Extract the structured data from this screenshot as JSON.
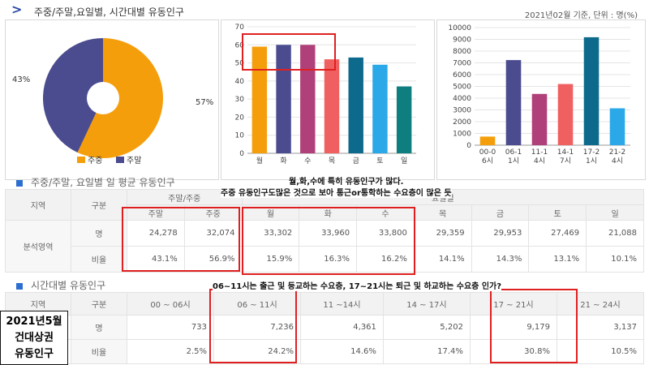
{
  "header": {
    "title": "주중/주말,요일별, 시간대별 유동인구",
    "meta": "2021년02월 기준, 단위 : 명(%)"
  },
  "legend": [
    {
      "label": "주중",
      "color": "#f59e0b"
    },
    {
      "label": "주말",
      "color": "#4b4b8f"
    }
  ],
  "chart_data": [
    {
      "type": "pie",
      "categories": [
        "주중",
        "주말"
      ],
      "values": [
        57,
        43
      ],
      "data_labels": [
        "57%",
        "43%"
      ],
      "colors": [
        "#f59e0b",
        "#4b4b8f"
      ]
    },
    {
      "type": "bar",
      "categories": [
        "월",
        "화",
        "수",
        "목",
        "금",
        "토",
        "일"
      ],
      "values": [
        59,
        60,
        60,
        52,
        53,
        49,
        37
      ],
      "ylim": [
        0,
        70
      ],
      "yticks": [
        0,
        10,
        20,
        30,
        40,
        50,
        60,
        70
      ],
      "colors": [
        "#f59e0b",
        "#4b4b8f",
        "#b0407a",
        "#f06060",
        "#0d6a8c",
        "#2aa8e8",
        "#0f7e7e"
      ]
    },
    {
      "type": "bar",
      "categories": [
        "00-06시",
        "06-11시",
        "11-14시",
        "14-17시",
        "17-21시",
        "21-24시"
      ],
      "tick_line1": [
        "00-0",
        "06-1",
        "11-1",
        "14-1",
        "17-2",
        "21-2"
      ],
      "tick_line2": [
        "6시",
        "1시",
        "4시",
        "7시",
        "1시",
        "4시"
      ],
      "values": [
        733,
        7236,
        4361,
        5202,
        9179,
        3137
      ],
      "ylim": [
        0,
        10000
      ],
      "yticks": [
        0,
        1000,
        2000,
        3000,
        4000,
        5000,
        6000,
        7000,
        8000,
        9000,
        10000
      ],
      "colors": [
        "#f59e0b",
        "#4b4b8f",
        "#b0407a",
        "#f06060",
        "#0d6a8c",
        "#2aa8e8"
      ]
    }
  ],
  "table1": {
    "title": "주중/주말, 요일별 일 평균 유동인구",
    "h_area": "지역",
    "h_gubun": "구분",
    "h_group1": "주말/주중",
    "h_group2": "요일별",
    "cols": [
      "주말",
      "주중",
      "월",
      "화",
      "수",
      "목",
      "금",
      "토",
      "일"
    ],
    "area": "분석영역",
    "rows": [
      {
        "label": "명",
        "values": [
          "24,278",
          "32,074",
          "33,302",
          "33,960",
          "33,800",
          "29,359",
          "29,953",
          "27,469",
          "21,088"
        ]
      },
      {
        "label": "비율",
        "values": [
          "43.1%",
          "56.9%",
          "15.9%",
          "16.3%",
          "16.2%",
          "14.1%",
          "14.3%",
          "13.1%",
          "10.1%"
        ]
      }
    ]
  },
  "table2": {
    "title": "시간대별 유동인구",
    "h_area": "지역",
    "h_gubun": "구분",
    "cols": [
      "00 ~ 06시",
      "06 ~ 11시",
      "11 ~14시",
      "14 ~ 17시",
      "17 ~ 21시",
      "21 ~ 24시"
    ],
    "rows": [
      {
        "label": "명",
        "values": [
          "733",
          "7,236",
          "4,361",
          "5,202",
          "9,179",
          "3,137"
        ]
      },
      {
        "label": "비율",
        "values": [
          "2.5%",
          "24.2%",
          "14.6%",
          "17.4%",
          "30.8%",
          "10.5%"
        ]
      }
    ]
  },
  "notes": {
    "n1": "월,화,수에 특히 유동인구가 많다.",
    "n2": "주중 유동인구도많은 것으로 보아 통근or통학하는 수요층이 많은 듯",
    "n3": "06~11시는 출근 및 등교하는 수요층, 17~21시는 퇴근 및 하교하는 수요층 인가?"
  },
  "stamp": {
    "line1": "2021년5월",
    "line2": "건대상권",
    "line3": "유동인구"
  }
}
